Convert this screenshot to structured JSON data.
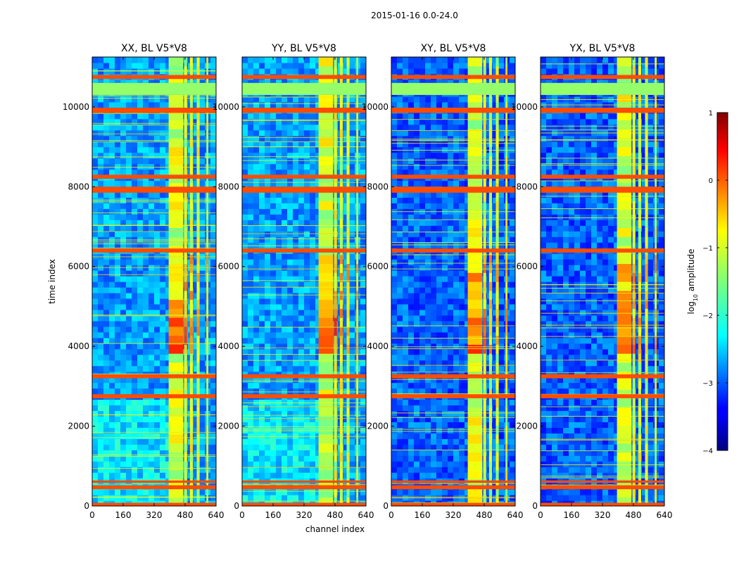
{
  "chart_data": {
    "type": "heatmap",
    "suptitle": "2015-01-16 0.0-24.0",
    "xlabel": "channel index",
    "ylabel": "time index",
    "xlim": [
      0,
      640
    ],
    "ylim": [
      0,
      11250
    ],
    "xticks": [
      0,
      160,
      320,
      480,
      640
    ],
    "yticks": [
      0,
      2000,
      4000,
      6000,
      8000,
      10000
    ],
    "panels": [
      {
        "title": "XX, BL V5*V8",
        "pol": "XX"
      },
      {
        "title": "YY, BL V5*V8",
        "pol": "YY"
      },
      {
        "title": "XY, BL V5*V8",
        "pol": "XY"
      },
      {
        "title": "YX, BL V5*V8",
        "pol": "YX"
      }
    ],
    "colorbar": {
      "label": "log10 amplitude",
      "label_base": "log",
      "label_sub": "10",
      "label_rest": " amplitude",
      "range": [
        -4,
        1
      ],
      "ticks": [
        "1",
        "0",
        "−1",
        "−2",
        "−3",
        "−4"
      ],
      "tick_values": [
        1,
        0,
        -1,
        -2,
        -3,
        -4
      ],
      "colormap": "jet"
    },
    "flagged_time_bands": [
      [
        0,
        80
      ],
      [
        420,
        520
      ],
      [
        580,
        640
      ],
      [
        3200,
        3300
      ],
      [
        2700,
        2800
      ],
      [
        6350,
        6450
      ],
      [
        7850,
        8000
      ],
      [
        8200,
        8300
      ],
      [
        9850,
        9980
      ],
      [
        10300,
        10600
      ],
      [
        10700,
        10800
      ]
    ],
    "bright_channel_bands": [
      [
        395,
        470
      ],
      [
        475,
        490
      ],
      [
        505,
        520
      ],
      [
        540,
        555
      ],
      [
        590,
        600
      ]
    ]
  }
}
